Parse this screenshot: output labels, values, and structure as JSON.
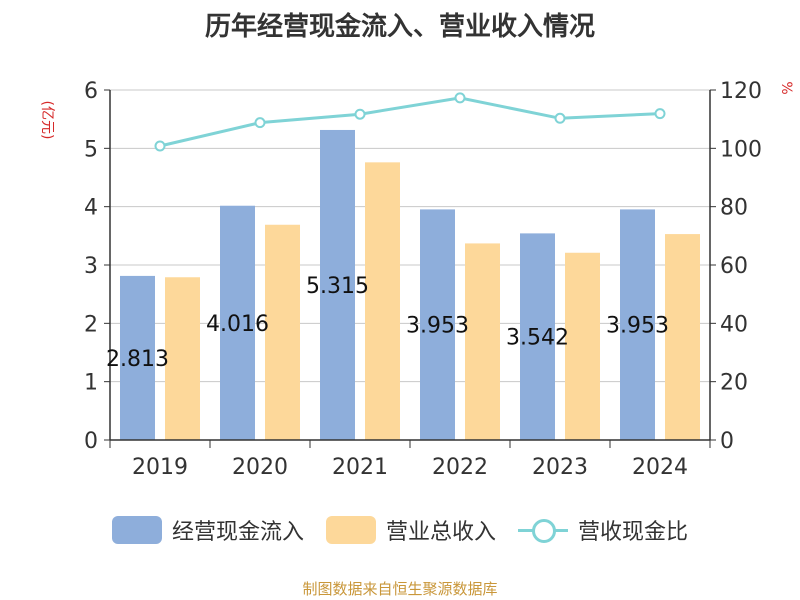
{
  "chart_data": {
    "type": "bar",
    "title": "历年经营现金流入、营业收入情况",
    "y_left_unit": "(亿元)",
    "y_right_unit": "%",
    "categories": [
      "2019",
      "2020",
      "2021",
      "2022",
      "2023",
      "2024"
    ],
    "y_left_ticks": [
      "0",
      "1",
      "2",
      "3",
      "4",
      "5",
      "6"
    ],
    "y_right_ticks": [
      "0",
      "20",
      "40",
      "60",
      "80",
      "100",
      "120"
    ],
    "ylim_left": [
      0,
      6
    ],
    "ylim_right": [
      0,
      120
    ],
    "series": [
      {
        "name": "经营现金流入",
        "type": "bar",
        "axis": "left",
        "color": "#8eaedb",
        "values": [
          2.813,
          4.016,
          5.315,
          3.953,
          3.542,
          3.953
        ],
        "labels": [
          "2.813",
          "4.016",
          "5.315",
          "3.953",
          "3.542",
          "3.953"
        ]
      },
      {
        "name": "营业总收入",
        "type": "bar",
        "axis": "left",
        "color": "#fdd89a",
        "values": [
          2.79,
          3.69,
          4.76,
          3.37,
          3.21,
          3.53
        ]
      },
      {
        "name": "营收现金比",
        "type": "line",
        "axis": "right",
        "color": "#7fd3d6",
        "values": [
          100.8,
          108.8,
          111.7,
          117.3,
          110.3,
          111.9
        ]
      }
    ],
    "grid": true,
    "legend_position": "bottom"
  },
  "source": "制图数据来自恒生聚源数据库"
}
